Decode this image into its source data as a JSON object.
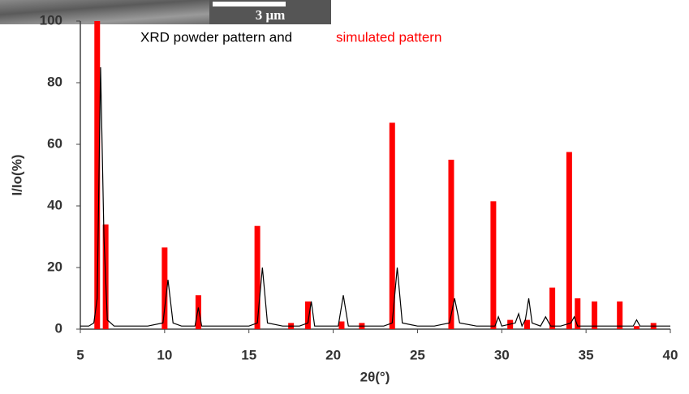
{
  "chart_data": {
    "type": "bar",
    "title": "XRD powder pattern and",
    "title_highlight": "simulated pattern",
    "image_scale_label": "3 μm",
    "x_label": "2θ(°)",
    "y_label": "I/Io(%)",
    "xlim": [
      5,
      40
    ],
    "xticks": [
      5,
      10,
      15,
      20,
      25,
      30,
      35,
      40
    ],
    "ylim": [
      0,
      100
    ],
    "yticks": [
      0,
      20,
      40,
      60,
      80,
      100
    ],
    "series": [
      {
        "type": "bar",
        "color": "#ff0000",
        "x": [
          6.0,
          6.5,
          10.0,
          12.0,
          15.5,
          17.5,
          18.5,
          20.5,
          21.7,
          23.5,
          27.0,
          29.5,
          30.5,
          31.5,
          33.0,
          34.0,
          34.5,
          35.5,
          37.0,
          38.0,
          39.0
        ],
        "values": [
          100,
          34,
          26.5,
          11,
          33.5,
          2,
          9,
          2.5,
          2,
          67,
          55,
          41.5,
          3,
          3,
          13.5,
          57.5,
          10,
          9,
          9,
          1,
          2
        ]
      },
      {
        "type": "line",
        "color": "#000000",
        "x": [
          5,
          5.5,
          5.8,
          6.0,
          6.2,
          6.4,
          6.6,
          7,
          8,
          9,
          9.9,
          10.2,
          10.5,
          11,
          11.8,
          12.0,
          12.2,
          13,
          14,
          15,
          15.5,
          15.8,
          16.1,
          17,
          18,
          18.5,
          18.7,
          18.9,
          19.5,
          20.3,
          20.6,
          20.9,
          22,
          23,
          23.5,
          23.8,
          24.1,
          25,
          26,
          26.9,
          27.2,
          27.5,
          28.5,
          29.6,
          29.8,
          30,
          30.8,
          31,
          31.2,
          31.4,
          31.6,
          31.8,
          32.3,
          32.6,
          32.9,
          33.5,
          34.1,
          34.3,
          34.5,
          35,
          36,
          37,
          37.8,
          38,
          38.2,
          39,
          40
        ],
        "values": [
          1,
          1,
          2,
          10,
          85,
          30,
          3,
          1,
          1,
          1,
          2,
          16,
          2,
          1,
          1,
          7,
          1,
          1,
          1,
          1,
          2,
          20,
          2,
          1,
          1,
          2,
          9,
          1,
          1,
          1,
          11,
          1,
          1,
          1,
          2,
          20,
          2,
          1,
          1,
          2,
          10,
          2,
          1,
          1,
          4,
          1,
          2,
          5,
          1,
          3,
          10,
          2,
          1,
          4,
          1,
          1,
          2,
          4,
          1,
          1,
          1,
          1,
          1,
          3,
          1,
          1,
          1
        ]
      }
    ]
  }
}
